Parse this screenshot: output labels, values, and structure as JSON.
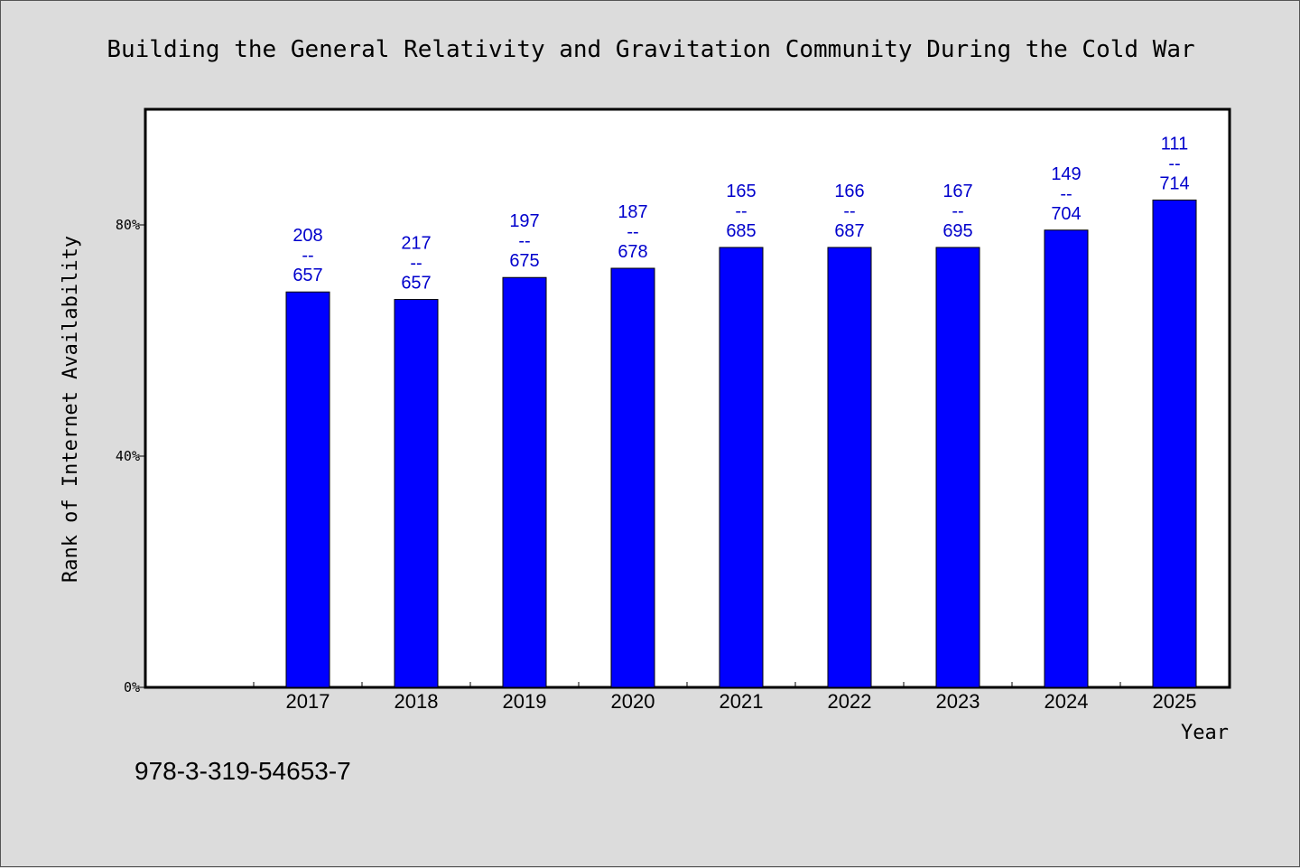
{
  "chart_data": {
    "type": "bar",
    "title": "Building the General Relativity and Gravitation Community During the Cold War",
    "xlabel": "Year",
    "ylabel": "Rank of Internet Availability",
    "categories": [
      "2017",
      "2018",
      "2019",
      "2020",
      "2021",
      "2022",
      "2023",
      "2024",
      "2025"
    ],
    "values": [
      68.4,
      67.1,
      70.9,
      72.5,
      76.1,
      76.1,
      76.1,
      79.1,
      84.3
    ],
    "data_labels": [
      [
        "208",
        "--",
        "657"
      ],
      [
        "217",
        "--",
        "657"
      ],
      [
        "197",
        "--",
        "675"
      ],
      [
        "187",
        "--",
        "678"
      ],
      [
        "165",
        "--",
        "685"
      ],
      [
        "166",
        "--",
        "687"
      ],
      [
        "167",
        "--",
        "695"
      ],
      [
        "149",
        "--",
        "704"
      ],
      [
        "111",
        "--",
        "714"
      ]
    ],
    "yticks": [
      0,
      40,
      80
    ],
    "ytick_labels": [
      "0%",
      "40%",
      "80%"
    ],
    "ylim": [
      0,
      100
    ],
    "bar_color": "#0000ff",
    "label_color": "#0000cc",
    "grid": false,
    "legend": "none"
  },
  "footer": {
    "isbn": "978-3-319-54653-7"
  }
}
